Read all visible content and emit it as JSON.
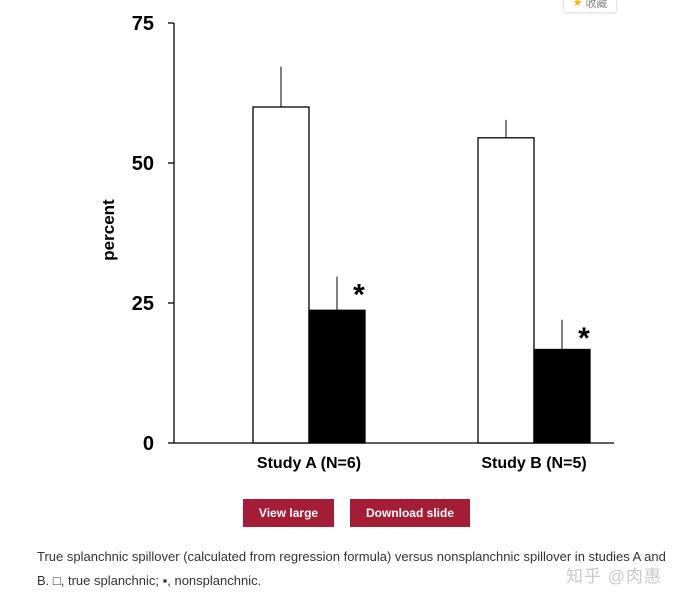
{
  "bookmark": {
    "label": "收藏",
    "icon": "star-icon"
  },
  "chart_data": {
    "type": "bar",
    "categories": [
      "Study A (N=6)",
      "Study B (N=5)"
    ],
    "series": [
      {
        "fill": "#ffffff",
        "values": [
          60,
          54.5
        ],
        "errors": [
          7.2,
          3.2
        ]
      },
      {
        "fill": "#000000",
        "values": [
          23.7,
          16.7
        ],
        "errors": [
          6,
          5.3
        ]
      }
    ],
    "significance": [
      "*",
      "*"
    ],
    "title": "",
    "xlabel": "",
    "ylabel": "percent",
    "ylim": [
      0,
      75
    ],
    "yticks": [
      0,
      25,
      50,
      75
    ],
    "grid": false
  },
  "buttons": {
    "view_large": "View large",
    "download_slide": "Download slide"
  },
  "caption": "True splanchnic spillover (calculated from regression formula) versus nonsplanchnic spillover in studies A and B. □, true splanchnic; ▪, nonsplanchnic.",
  "watermark": "知乎 @肉惠"
}
